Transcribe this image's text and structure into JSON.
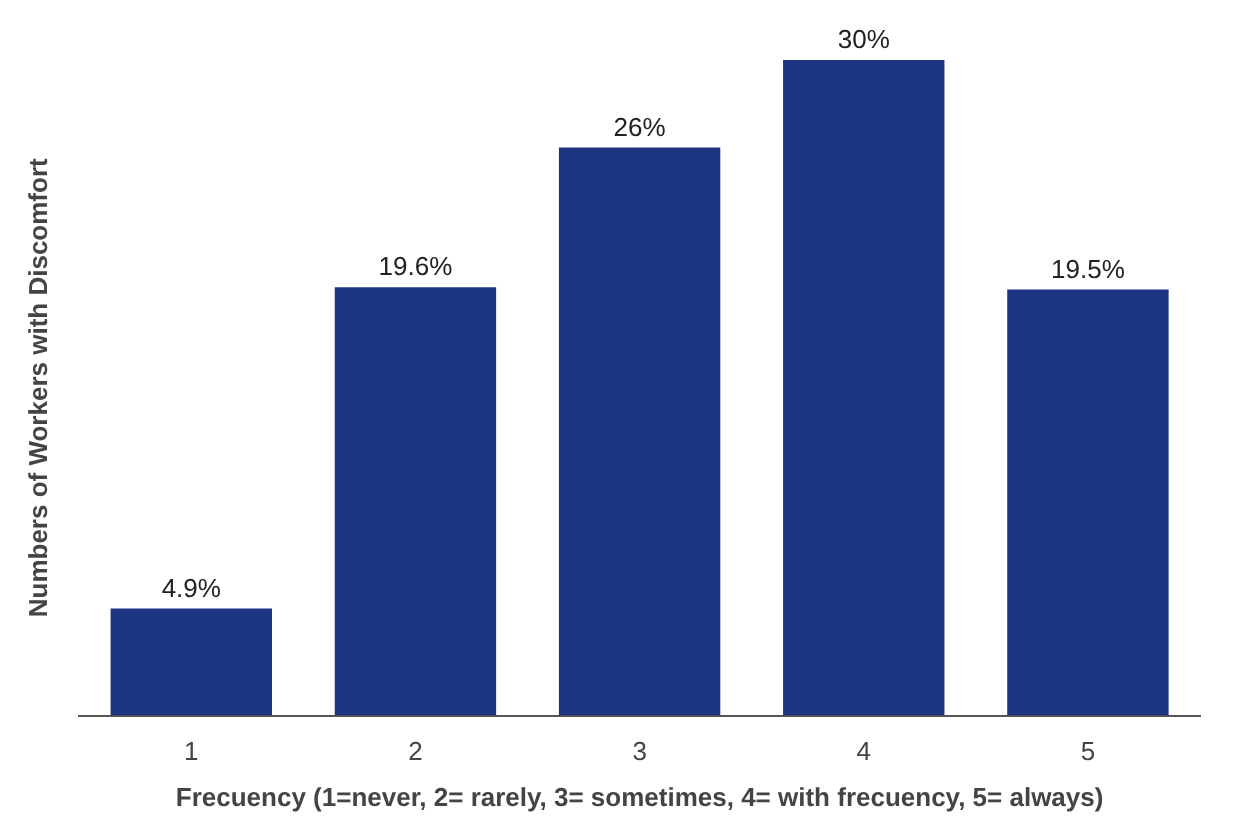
{
  "chart_data": {
    "type": "bar",
    "xlabel": "Frecuency (1=never, 2= rarely, 3= sometimes, 4= with frecuency, 5= always)",
    "ylabel": "Numbers of Workers with Discomfort",
    "categories": [
      "1",
      "2",
      "3",
      "4",
      "5"
    ],
    "values": [
      4.9,
      19.6,
      26,
      30,
      19.5
    ],
    "value_labels": [
      "4.9%",
      "19.6%",
      "26%",
      "30%",
      "19.5%"
    ],
    "color": "#1c3583",
    "grid": false,
    "tick_labels": "x"
  }
}
